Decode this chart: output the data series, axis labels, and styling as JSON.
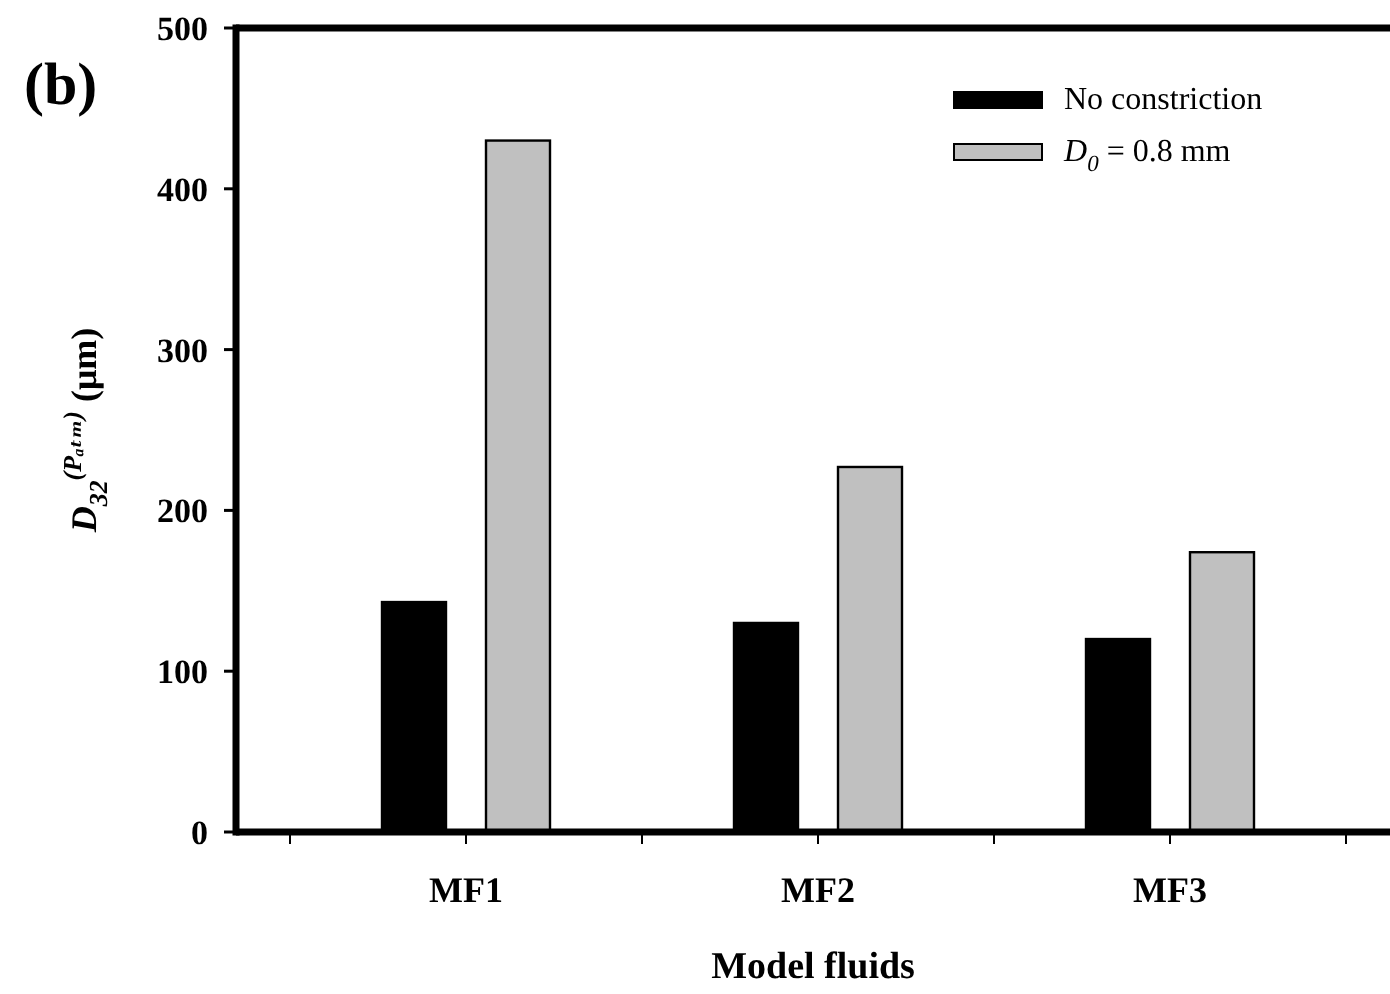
{
  "chart_data": {
    "type": "bar",
    "title": "(b)",
    "xlabel": "Model fluids",
    "ylabel": "D$_{32}$$^{(Pₐₜₘ)}$ (μm)",
    "categories": [
      "MF1",
      "MF2",
      "MF3"
    ],
    "series": [
      {
        "name": "No constriction",
        "color": "#000000",
        "values": [
          143,
          130,
          120
        ]
      },
      {
        "name": "D$_{0}$ = 0.8 mm",
        "color": "#c0c0c0",
        "values": [
          430,
          227,
          174
        ]
      }
    ],
    "ylim": [
      0,
      500
    ],
    "yticks": [
      0,
      100,
      200,
      300,
      400,
      500
    ],
    "legend": "top right"
  }
}
